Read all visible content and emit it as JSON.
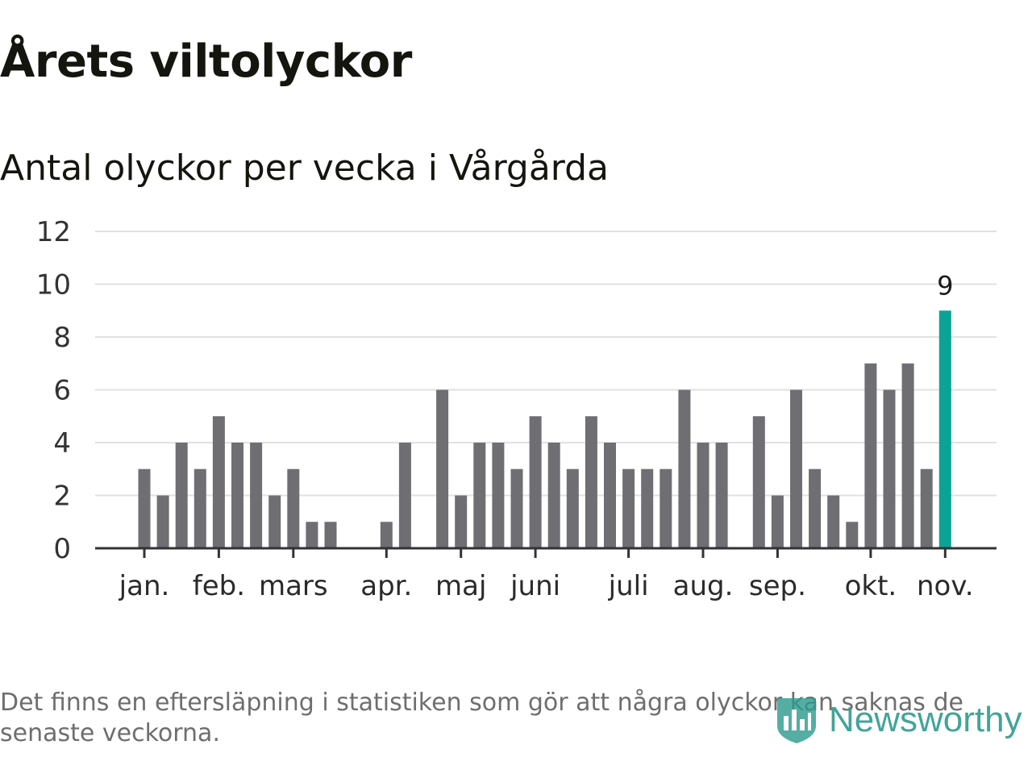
{
  "title": "Årets viltolyckor",
  "subtitle": "Antal olyckor per vecka i Vårgårda",
  "footnote": "Det finns en eftersläpning i statistiken som gör att några olyckor kan saknas de senaste veckorna.",
  "logo": {
    "text": "Newsworthy",
    "icon": "bar-chart-shield-icon"
  },
  "colors": {
    "bar": "#6f6e73",
    "highlight": "#0aa396",
    "grid": "#e1e1e1",
    "axis": "#333333",
    "logo": "#2e9b8f"
  },
  "chart_data": {
    "type": "bar",
    "title": "Årets viltolyckor",
    "subtitle": "Antal olyckor per vecka i Vårgårda",
    "xlabel": "",
    "ylabel": "",
    "ylim": [
      0,
      12
    ],
    "yticks": [
      0,
      2,
      4,
      6,
      8,
      10,
      12
    ],
    "grid": true,
    "weeks": [
      1,
      2,
      3,
      4,
      5,
      6,
      7,
      8,
      9,
      10,
      11,
      12,
      13,
      14,
      15,
      16,
      17,
      18,
      19,
      20,
      21,
      22,
      23,
      24,
      25,
      26,
      27,
      28,
      29,
      30,
      31,
      32,
      33,
      34,
      35,
      36,
      37,
      38,
      39,
      40,
      41,
      42,
      43,
      44,
      45
    ],
    "values": [
      3,
      2,
      4,
      3,
      5,
      4,
      4,
      2,
      3,
      1,
      1,
      0,
      0,
      1,
      4,
      0,
      6,
      2,
      4,
      4,
      3,
      5,
      4,
      3,
      5,
      4,
      3,
      3,
      3,
      6,
      4,
      4,
      0,
      5,
      2,
      6,
      3,
      2,
      1,
      7,
      6,
      7,
      3,
      9,
      0
    ],
    "highlight_index": 43,
    "highlight_label": "9",
    "month_labels": [
      {
        "label": "jan.",
        "week": 1
      },
      {
        "label": "feb.",
        "week": 5
      },
      {
        "label": "mars",
        "week": 9
      },
      {
        "label": "apr.",
        "week": 14
      },
      {
        "label": "maj",
        "week": 18
      },
      {
        "label": "juni",
        "week": 22
      },
      {
        "label": "juli",
        "week": 27
      },
      {
        "label": "aug.",
        "week": 31
      },
      {
        "label": "sep.",
        "week": 35
      },
      {
        "label": "okt.",
        "week": 40
      },
      {
        "label": "nov.",
        "week": 44
      }
    ]
  }
}
